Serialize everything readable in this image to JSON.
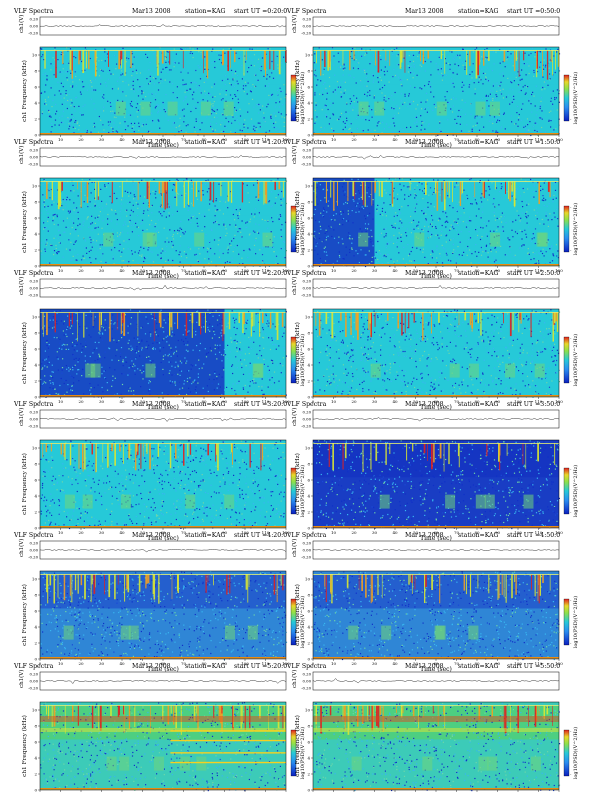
{
  "common": {
    "title_left": "VLF Spectra",
    "date": "Mar13 2008",
    "station": "station=KAG",
    "ch_label": "ch1(V)",
    "freq_label": "ch1 Frequency (kHz)",
    "time_label": "Time (sec)",
    "colorbar_label": "log10(PSD)(V^2/Hz)",
    "amp_ticks": [
      "0.20",
      "0.00",
      "-0.20"
    ],
    "freq_ticks": [
      "10",
      "8",
      "6",
      "4",
      "2",
      "0"
    ],
    "time_ticks": [
      "0",
      "10",
      "20",
      "30",
      "40",
      "50",
      "60",
      "70",
      "80",
      "90",
      "100",
      "110",
      "120"
    ],
    "colorbar_ticks": [
      "-",
      "-"
    ]
  },
  "panels": [
    {
      "start": "start UT =0:20:0",
      "profile": "normal",
      "darkUntil": 0
    },
    {
      "start": "start UT =0:50:0",
      "profile": "normal",
      "darkUntil": 0
    },
    {
      "start": "start UT =1:20:0",
      "profile": "normal",
      "darkUntil": 0
    },
    {
      "start": "start UT =1:50:0",
      "profile": "darkstart",
      "darkUntil": 0.25
    },
    {
      "start": "start UT =2:20:0",
      "profile": "darkstart",
      "darkUntil": 0.75
    },
    {
      "start": "start UT =2:50:0",
      "profile": "normal",
      "darkUntil": 0
    },
    {
      "start": "start UT =3:20:0",
      "profile": "normal",
      "darkUntil": 0
    },
    {
      "start": "start UT =3:50:0",
      "profile": "dark",
      "darkUntil": 1
    },
    {
      "start": "start UT =4:20:0",
      "profile": "darkish",
      "darkUntil": 0
    },
    {
      "start": "start UT =4:50:0",
      "profile": "darkish",
      "darkUntil": 0
    },
    {
      "start": "start UT =5:20:0",
      "profile": "bright",
      "darkUntil": 0
    },
    {
      "start": "start UT =5:50:0",
      "profile": "bright",
      "darkUntil": 0
    }
  ],
  "chart_data": {
    "type": "heatmap",
    "xlabel": "Time (sec)",
    "ylabel": "ch1 Frequency (kHz)",
    "xlim": [
      0,
      120
    ],
    "ylim": [
      0,
      11
    ],
    "colorbar": "log10(PSD)(V^2/Hz)",
    "colors": {
      "low": "#0a1fbf",
      "mid": "#26c9d8",
      "high": "#d8e534",
      "peak": "#e02020"
    }
  }
}
